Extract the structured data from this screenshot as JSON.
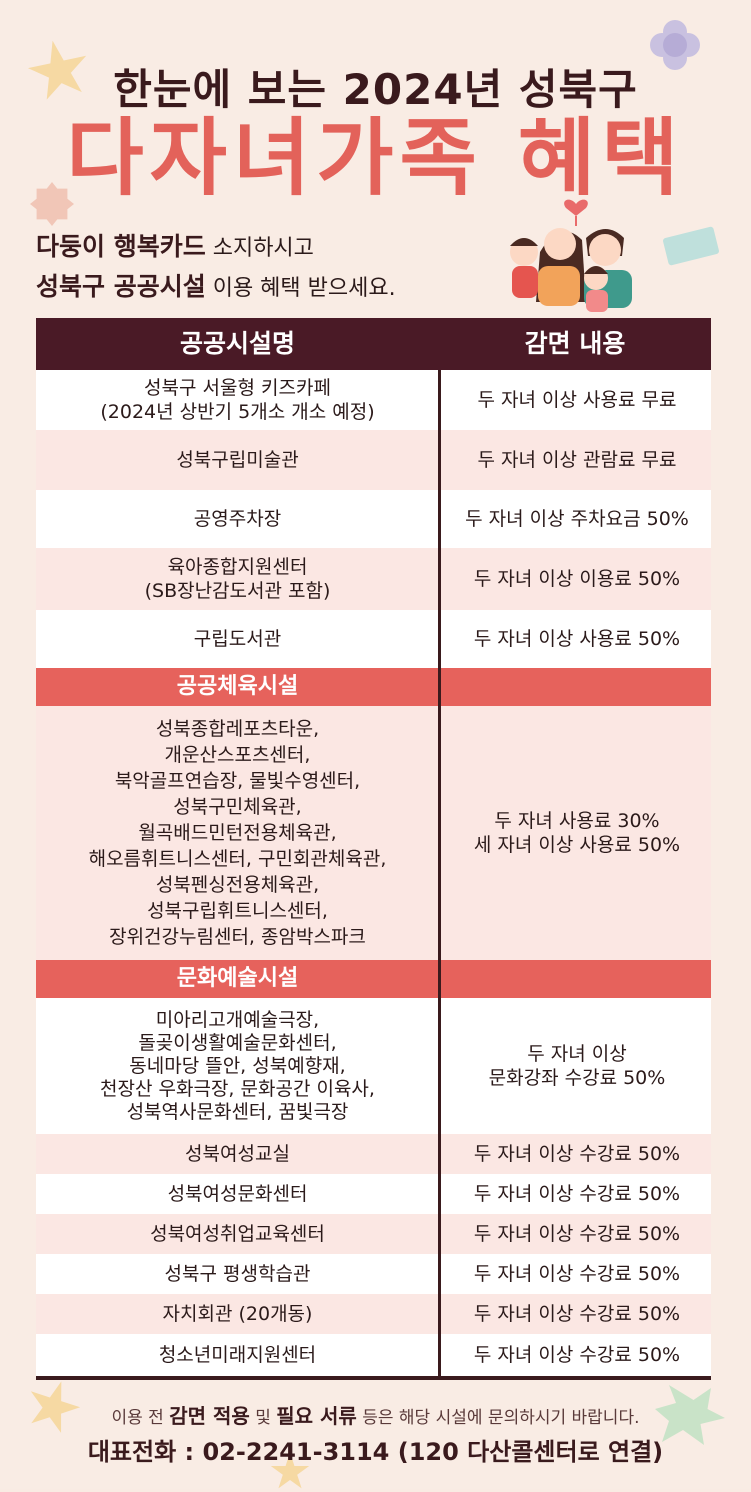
{
  "header": {
    "line1": "한눈에 보는 2024년 성북구",
    "line2": "다자녀가족 혜택"
  },
  "intro": {
    "line1_bold": "다둥이 행복카드",
    "line1_rest": " 소지하시고",
    "line2_bold": "성북구 공공시설",
    "line2_rest": " 이용 혜택 받으세요."
  },
  "table": {
    "col1": "공공시설명",
    "col2": "감면 내용",
    "rows": [
      {
        "facility": "성북구 서울형 키즈카페\n(2024년 상반기 5개소 개소 예정)",
        "benefit": "두 자녀 이상 사용료 무료"
      },
      {
        "facility": "성북구립미술관",
        "benefit": "두 자녀 이상 관람료 무료"
      },
      {
        "facility": "공영주차장",
        "benefit": "두 자녀 이상 주차요금 50%"
      },
      {
        "facility": "육아종합지원센터\n(SB장난감도서관 포함)",
        "benefit": "두 자녀 이상 이용료 50%"
      },
      {
        "facility": "구립도서관",
        "benefit": "두 자녀 이상 사용료 50%"
      }
    ],
    "sports": {
      "label": "공공체육시설",
      "facility": "성북종합레포츠타운,\n개운산스포츠센터,\n북악골프연습장, 물빛수영센터,\n성북구민체육관,\n월곡배드민턴전용체육관,\n해오름휘트니스센터, 구민회관체육관,\n성북펜싱전용체육관,\n성북구립휘트니스센터,\n장위건강누림센터, 종암박스파크",
      "benefit": "두 자녀 사용료 30%\n세 자녀 이상 사용료 50%"
    },
    "culture": {
      "label": "문화예술시설",
      "facility": "미아리고개예술극장,\n돌곶이생활예술문화센터,\n동네마당 뜰안, 성북예향재,\n천장산 우화극장, 문화공간 이육사,\n성북역사문화센터, 꿈빛극장",
      "benefit": "두 자녀 이상\n문화강좌 수강료 50%"
    },
    "rows2": [
      {
        "facility": "성북여성교실",
        "benefit": "두 자녀 이상 수강료 50%"
      },
      {
        "facility": "성북여성문화센터",
        "benefit": "두 자녀 이상 수강료 50%"
      },
      {
        "facility": "성북여성취업교육센터",
        "benefit": "두 자녀 이상 수강료 50%"
      },
      {
        "facility": "성북구 평생학습관",
        "benefit": "두 자녀 이상 수강료 50%"
      },
      {
        "facility": "자치회관 (20개동)",
        "benefit": "두 자녀 이상 수강료 50%"
      },
      {
        "facility": "청소년미래지원센터",
        "benefit": "두 자녀 이상 수강료 50%"
      }
    ]
  },
  "footer": {
    "note_a": "이용 전 ",
    "note_b": "감면 적용",
    "note_c": " 및 ",
    "note_d": "필요 서류",
    "note_e": " 등은 해당 시설에 문의하시기 바랍니다.",
    "phone": "대표전화 : 02-2241-3114 (120 다산콜센터로 연결)"
  },
  "colors": {
    "header_dark": "#4a1a26",
    "accent_red": "#e6625c",
    "title_red": "#e3625a",
    "background": "#f9ece4"
  }
}
